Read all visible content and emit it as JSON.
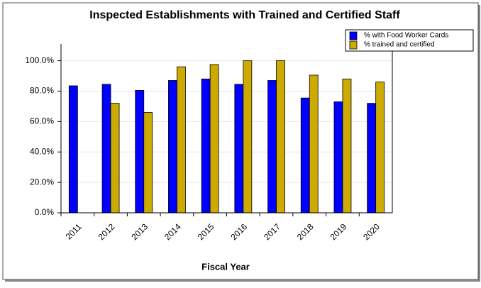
{
  "chart_data": {
    "type": "bar",
    "title": "Inspected Establishments with Trained and Certified Staff",
    "x_label": "Fiscal Year",
    "categories": [
      "2011",
      "2012",
      "2013",
      "2014",
      "2015",
      "2016",
      "2017",
      "2018",
      "2019",
      "2020"
    ],
    "series": [
      {
        "name": "% with Food Worker Cards",
        "color": "#0000ff",
        "values": [
          83.5,
          84.5,
          80.5,
          87,
          88,
          84.5,
          87,
          75.5,
          73,
          72
        ]
      },
      {
        "name": "% trained and certified",
        "color": "#ccaa00",
        "values": [
          null,
          72,
          66,
          96,
          97.5,
          100,
          100,
          90.5,
          88,
          86
        ]
      }
    ],
    "ylim": [
      0,
      111
    ],
    "yticks": [
      {
        "value": 0,
        "label": "0.0%"
      },
      {
        "value": 20,
        "label": "20.0%"
      },
      {
        "value": 40,
        "label": "40.0%"
      },
      {
        "value": 60,
        "label": "60.0%"
      },
      {
        "value": 80,
        "label": "80.0%"
      },
      {
        "value": 100,
        "label": "100.0%"
      }
    ],
    "legend": "top-right"
  }
}
